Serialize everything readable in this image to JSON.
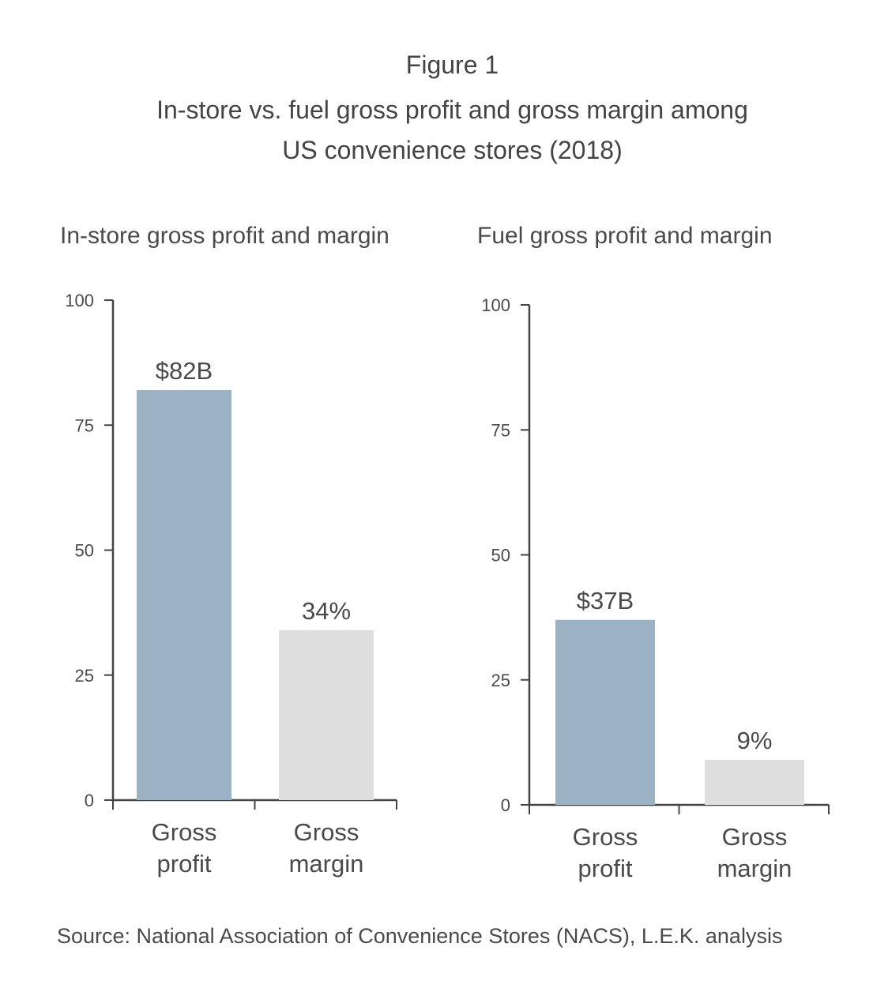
{
  "figure": {
    "label": "Figure 1",
    "title_line1": "In-store vs. fuel gross profit and gross margin among",
    "title_line2": "US convenience stores (2018)"
  },
  "source": "Source: National Association of Convenience Stores (NACS), L.E.K. analysis",
  "colors": {
    "gross_profit_bar": "#9ab2c3",
    "gross_margin_bar": "#dfdfdf",
    "axis": "#444444",
    "text": "#4a4a4a"
  },
  "chart_data": [
    {
      "type": "bar",
      "title": "In-store gross profit and margin",
      "categories": [
        [
          "Gross",
          "profit"
        ],
        [
          "Gross",
          "margin"
        ]
      ],
      "values": [
        82,
        34
      ],
      "data_labels": [
        "$82B",
        "34%"
      ],
      "ylim": [
        0,
        100
      ],
      "yticks": [
        0,
        25,
        50,
        75,
        100
      ],
      "grid": false,
      "xlabel": "",
      "ylabel": ""
    },
    {
      "type": "bar",
      "title": "Fuel gross profit and margin",
      "categories": [
        [
          "Gross",
          "profit"
        ],
        [
          "Gross",
          "margin"
        ]
      ],
      "values": [
        37,
        9
      ],
      "data_labels": [
        "$37B",
        "9%"
      ],
      "ylim": [
        0,
        100
      ],
      "yticks": [
        0,
        25,
        50,
        75,
        100
      ],
      "grid": false,
      "xlabel": "",
      "ylabel": ""
    }
  ]
}
